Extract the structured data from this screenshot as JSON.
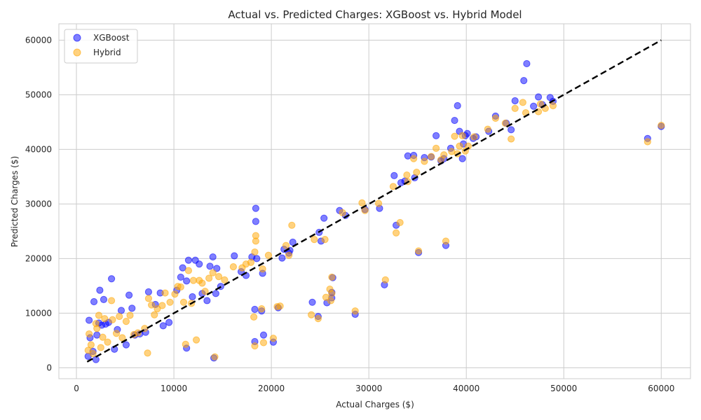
{
  "chart_data": {
    "type": "scatter",
    "title": "Actual vs. Predicted Charges: XGBoost vs. Hybrid Model",
    "xlabel": "Actual Charges ($)",
    "ylabel": "Predicted Charges ($)",
    "xlim": [
      -1800,
      63000
    ],
    "ylim": [
      -2000,
      63000
    ],
    "xticks": [
      0,
      10000,
      20000,
      30000,
      40000,
      50000,
      60000
    ],
    "yticks": [
      0,
      10000,
      20000,
      30000,
      40000,
      50000,
      60000
    ],
    "grid": true,
    "legend": "top-left",
    "reference_line": {
      "from": [
        1100,
        1100
      ],
      "to": [
        60000,
        60000
      ],
      "style": "dashed",
      "color": "#000000"
    },
    "series": [
      {
        "name": "XGBoost",
        "color": "#0000ff",
        "points": [
          [
            1200,
            2100
          ],
          [
            1300,
            8700
          ],
          [
            1400,
            5500
          ],
          [
            1700,
            3000
          ],
          [
            1800,
            12100
          ],
          [
            2000,
            1500
          ],
          [
            2100,
            6000
          ],
          [
            2300,
            8200
          ],
          [
            2400,
            14200
          ],
          [
            2600,
            7800
          ],
          [
            2800,
            12500
          ],
          [
            3000,
            8000
          ],
          [
            3300,
            8300
          ],
          [
            3600,
            16300
          ],
          [
            3900,
            3400
          ],
          [
            4200,
            7000
          ],
          [
            4600,
            10500
          ],
          [
            5100,
            4200
          ],
          [
            5400,
            13300
          ],
          [
            5700,
            10900
          ],
          [
            6000,
            6000
          ],
          [
            6500,
            6200
          ],
          [
            7100,
            6500
          ],
          [
            7400,
            13900
          ],
          [
            8100,
            11600
          ],
          [
            8600,
            13700
          ],
          [
            8900,
            7700
          ],
          [
            9500,
            8300
          ],
          [
            10300,
            14200
          ],
          [
            10700,
            16600
          ],
          [
            10900,
            18300
          ],
          [
            11300,
            15900
          ],
          [
            11300,
            3600
          ],
          [
            11500,
            19700
          ],
          [
            11900,
            13000
          ],
          [
            12200,
            19700
          ],
          [
            12600,
            19000
          ],
          [
            12900,
            13600
          ],
          [
            13400,
            12300
          ],
          [
            13700,
            18600
          ],
          [
            14000,
            20300
          ],
          [
            14100,
            1800
          ],
          [
            14300,
            13600
          ],
          [
            14400,
            18200
          ],
          [
            14800,
            14900
          ],
          [
            16200,
            20500
          ],
          [
            16900,
            17600
          ],
          [
            17400,
            16900
          ],
          [
            18000,
            20300
          ],
          [
            18300,
            4800
          ],
          [
            18300,
            10700
          ],
          [
            18400,
            29200
          ],
          [
            18400,
            26800
          ],
          [
            18500,
            20000
          ],
          [
            19000,
            10400
          ],
          [
            19100,
            17300
          ],
          [
            19200,
            6000
          ],
          [
            20200,
            4700
          ],
          [
            20700,
            11000
          ],
          [
            21100,
            20100
          ],
          [
            21300,
            21700
          ],
          [
            21800,
            21000
          ],
          [
            21900,
            21500
          ],
          [
            22200,
            23000
          ],
          [
            24200,
            12000
          ],
          [
            24800,
            9400
          ],
          [
            24900,
            24800
          ],
          [
            25100,
            23200
          ],
          [
            25400,
            27400
          ],
          [
            25700,
            11900
          ],
          [
            26200,
            12800
          ],
          [
            26200,
            13800
          ],
          [
            26300,
            16500
          ],
          [
            27000,
            28800
          ],
          [
            27600,
            27900
          ],
          [
            28600,
            9800
          ],
          [
            29600,
            29000
          ],
          [
            31100,
            29200
          ],
          [
            31600,
            15200
          ],
          [
            32600,
            35200
          ],
          [
            32800,
            26100
          ],
          [
            33300,
            33900
          ],
          [
            33700,
            34200
          ],
          [
            34000,
            38800
          ],
          [
            34600,
            38900
          ],
          [
            34700,
            34800
          ],
          [
            35100,
            21100
          ],
          [
            35700,
            38500
          ],
          [
            36400,
            38600
          ],
          [
            36900,
            42500
          ],
          [
            37400,
            37900
          ],
          [
            37700,
            38300
          ],
          [
            37900,
            22400
          ],
          [
            38400,
            40200
          ],
          [
            38800,
            45300
          ],
          [
            39100,
            48000
          ],
          [
            39300,
            43300
          ],
          [
            39600,
            38300
          ],
          [
            39700,
            41000
          ],
          [
            39900,
            42500
          ],
          [
            40100,
            42900
          ],
          [
            40700,
            42000
          ],
          [
            41000,
            42300
          ],
          [
            42300,
            43300
          ],
          [
            43000,
            46100
          ],
          [
            44100,
            44800
          ],
          [
            44600,
            43600
          ],
          [
            45000,
            48900
          ],
          [
            45900,
            52600
          ],
          [
            46200,
            55700
          ],
          [
            46900,
            47900
          ],
          [
            47400,
            49600
          ],
          [
            47800,
            48200
          ],
          [
            48600,
            49500
          ],
          [
            48900,
            48800
          ],
          [
            58600,
            42000
          ],
          [
            60000,
            44200
          ]
        ]
      },
      {
        "name": "Hybrid",
        "color": "#ffa500",
        "points": [
          [
            1200,
            3200
          ],
          [
            1300,
            6200
          ],
          [
            1500,
            4200
          ],
          [
            1700,
            2600
          ],
          [
            2000,
            8100
          ],
          [
            2100,
            7200
          ],
          [
            2300,
            9600
          ],
          [
            2500,
            3700
          ],
          [
            2700,
            5600
          ],
          [
            2900,
            9000
          ],
          [
            3200,
            4700
          ],
          [
            3600,
            12300
          ],
          [
            3700,
            8800
          ],
          [
            4100,
            6300
          ],
          [
            4400,
            9400
          ],
          [
            4700,
            5500
          ],
          [
            5100,
            8500
          ],
          [
            5500,
            9600
          ],
          [
            5900,
            6100
          ],
          [
            6300,
            6400
          ],
          [
            7000,
            7200
          ],
          [
            7300,
            2700
          ],
          [
            7400,
            12700
          ],
          [
            7700,
            11500
          ],
          [
            8000,
            9700
          ],
          [
            8300,
            10800
          ],
          [
            8800,
            11400
          ],
          [
            9100,
            13700
          ],
          [
            9600,
            12000
          ],
          [
            10100,
            13500
          ],
          [
            10400,
            14900
          ],
          [
            10700,
            14800
          ],
          [
            11000,
            12000
          ],
          [
            11200,
            4300
          ],
          [
            11500,
            17800
          ],
          [
            11800,
            11800
          ],
          [
            12000,
            16000
          ],
          [
            12300,
            5100
          ],
          [
            12600,
            16000
          ],
          [
            12900,
            15500
          ],
          [
            13200,
            14000
          ],
          [
            13600,
            16400
          ],
          [
            14000,
            17400
          ],
          [
            14200,
            2000
          ],
          [
            14600,
            16700
          ],
          [
            15200,
            16100
          ],
          [
            16100,
            18500
          ],
          [
            17000,
            18300
          ],
          [
            17400,
            19000
          ],
          [
            17900,
            19300
          ],
          [
            18200,
            9300
          ],
          [
            18300,
            4000
          ],
          [
            18300,
            21200
          ],
          [
            18400,
            24200
          ],
          [
            18400,
            23200
          ],
          [
            19000,
            10800
          ],
          [
            19100,
            18100
          ],
          [
            19200,
            4600
          ],
          [
            19700,
            20600
          ],
          [
            20200,
            5400
          ],
          [
            20600,
            11200
          ],
          [
            20900,
            11300
          ],
          [
            21500,
            22400
          ],
          [
            21800,
            20600
          ],
          [
            22100,
            26100
          ],
          [
            24100,
            9700
          ],
          [
            24400,
            23500
          ],
          [
            24800,
            9000
          ],
          [
            25500,
            23500
          ],
          [
            25600,
            12900
          ],
          [
            26000,
            14400
          ],
          [
            26100,
            12300
          ],
          [
            26200,
            13600
          ],
          [
            26200,
            16600
          ],
          [
            27300,
            28400
          ],
          [
            28600,
            10400
          ],
          [
            29300,
            30200
          ],
          [
            29600,
            28800
          ],
          [
            31000,
            30100
          ],
          [
            31700,
            16100
          ],
          [
            32500,
            33200
          ],
          [
            32800,
            24700
          ],
          [
            33200,
            26600
          ],
          [
            33900,
            35300
          ],
          [
            34000,
            34100
          ],
          [
            34600,
            38300
          ],
          [
            34900,
            35800
          ],
          [
            35100,
            21400
          ],
          [
            35700,
            37800
          ],
          [
            36400,
            38700
          ],
          [
            36900,
            40200
          ],
          [
            37400,
            38100
          ],
          [
            37700,
            39000
          ],
          [
            37900,
            23200
          ],
          [
            38500,
            39600
          ],
          [
            38800,
            42400
          ],
          [
            39100,
            39200
          ],
          [
            39300,
            40600
          ],
          [
            39600,
            42500
          ],
          [
            39900,
            39700
          ],
          [
            40200,
            40600
          ],
          [
            40800,
            42300
          ],
          [
            42200,
            43700
          ],
          [
            43000,
            45700
          ],
          [
            44000,
            44800
          ],
          [
            44600,
            41900
          ],
          [
            45000,
            47500
          ],
          [
            45800,
            48600
          ],
          [
            46100,
            46700
          ],
          [
            47400,
            46900
          ],
          [
            47600,
            48300
          ],
          [
            48100,
            47500
          ],
          [
            48900,
            48000
          ],
          [
            58600,
            41400
          ],
          [
            60000,
            44400
          ]
        ]
      }
    ]
  }
}
